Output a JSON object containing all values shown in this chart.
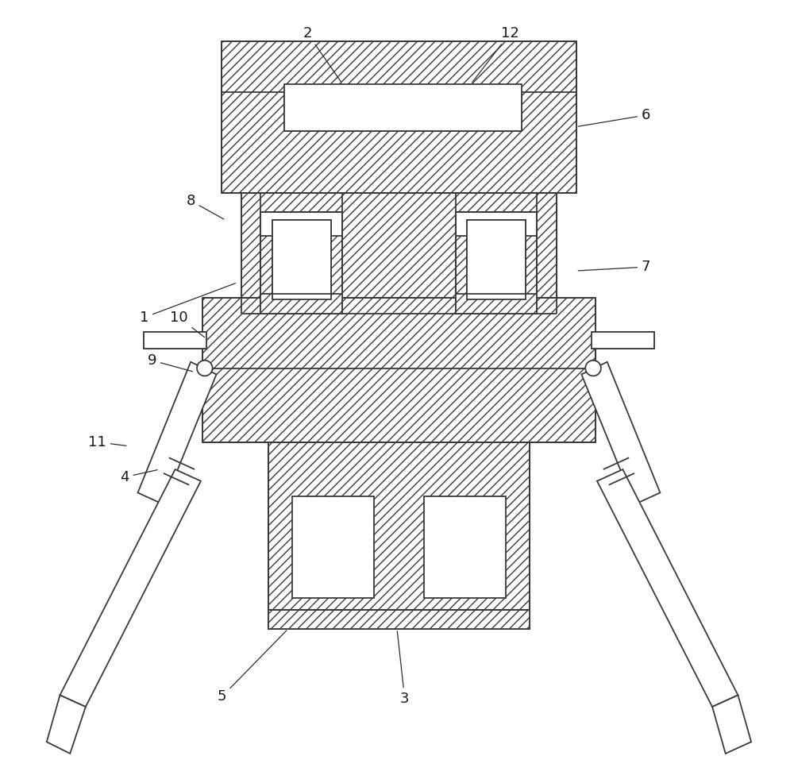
{
  "bg_color": "#ffffff",
  "line_color": "#3a3a3a",
  "lw": 1.3,
  "fig_width": 10.0,
  "fig_height": 9.86,
  "hatch": "///",
  "labels_info": {
    "1": [
      0.175,
      0.595,
      0.295,
      0.64
    ],
    "2": [
      0.385,
      0.96,
      0.43,
      0.895
    ],
    "3": [
      0.51,
      0.105,
      0.5,
      0.195
    ],
    "4": [
      0.15,
      0.39,
      0.195,
      0.4
    ],
    "5": [
      0.275,
      0.108,
      0.36,
      0.195
    ],
    "6": [
      0.82,
      0.855,
      0.73,
      0.84
    ],
    "7": [
      0.82,
      0.66,
      0.73,
      0.655
    ],
    "8": [
      0.235,
      0.745,
      0.28,
      0.72
    ],
    "9": [
      0.185,
      0.54,
      0.24,
      0.525
    ],
    "10": [
      0.22,
      0.595,
      0.255,
      0.568
    ],
    "11": [
      0.115,
      0.435,
      0.155,
      0.43
    ],
    "12": [
      0.645,
      0.96,
      0.595,
      0.895
    ]
  }
}
